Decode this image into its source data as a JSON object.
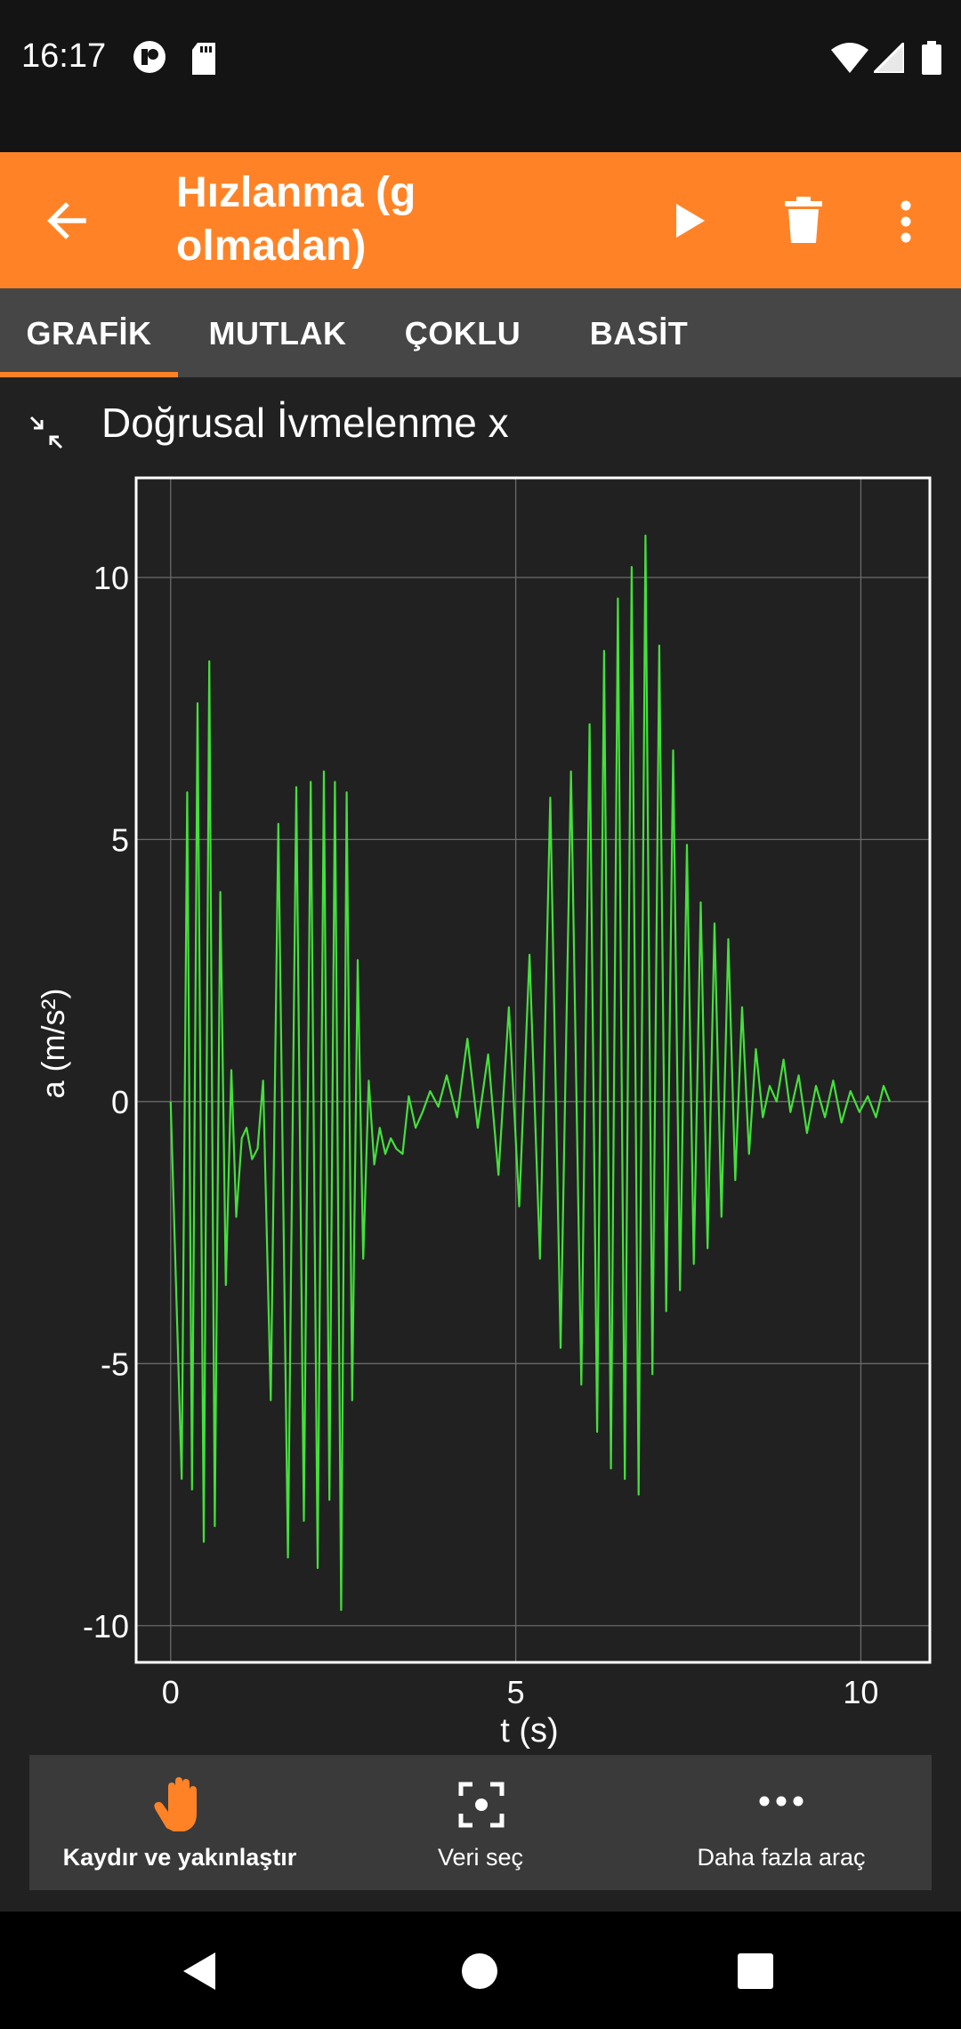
{
  "status": {
    "time": "16:17"
  },
  "app_bar": {
    "title": "Hızlanma (g olmadan)"
  },
  "tabs": [
    {
      "label": "GRAFİK",
      "active": true
    },
    {
      "label": "MUTLAK"
    },
    {
      "label": "ÇOKLU"
    },
    {
      "label": "BASİT"
    }
  ],
  "chart_title": "Doğrusal İvmelenme x",
  "chart_data": {
    "type": "line",
    "xlabel": "t (s)",
    "ylabel": "a (m/s²)",
    "xlim": [
      -0.5,
      11
    ],
    "ylim": [
      -10.7,
      11.9
    ],
    "x_ticks": [
      0,
      5,
      10
    ],
    "x_tick_labels": [
      "0",
      "5",
      "10"
    ],
    "y_ticks": [
      10,
      5,
      0,
      -5,
      -10
    ],
    "y_tick_labels": [
      "10",
      "5",
      "0",
      "-5",
      "-10"
    ],
    "grid": true,
    "line_color": "#44E03C",
    "series": [
      {
        "x": [
          0.0,
          0.16,
          0.24,
          0.31,
          0.39,
          0.48,
          0.56,
          0.64,
          0.72,
          0.8,
          0.88,
          0.95,
          1.03,
          1.1,
          1.18,
          1.26,
          1.34,
          1.45,
          1.56,
          1.7,
          1.82,
          1.93,
          2.03,
          2.13,
          2.22,
          2.3,
          2.38,
          2.47,
          2.55,
          2.63,
          2.71,
          2.79,
          2.87,
          2.95,
          3.03,
          3.11,
          3.19,
          3.27,
          3.36,
          3.45,
          3.55,
          3.65,
          3.76,
          3.88,
          4.0,
          4.15,
          4.3,
          4.45,
          4.6,
          4.75,
          4.9,
          5.05,
          5.2,
          5.35,
          5.5,
          5.65,
          5.8,
          5.95,
          6.07,
          6.18,
          6.28,
          6.38,
          6.48,
          6.58,
          6.68,
          6.78,
          6.88,
          6.98,
          7.08,
          7.18,
          7.28,
          7.38,
          7.48,
          7.58,
          7.68,
          7.78,
          7.88,
          7.98,
          8.08,
          8.18,
          8.28,
          8.38,
          8.48,
          8.58,
          8.68,
          8.78,
          8.88,
          8.98,
          9.1,
          9.22,
          9.35,
          9.48,
          9.6,
          9.72,
          9.85,
          9.98,
          10.1,
          10.22,
          10.33,
          10.42
        ],
        "y": [
          0.0,
          -7.2,
          5.9,
          -7.4,
          7.6,
          -8.4,
          8.4,
          -8.1,
          4.0,
          -3.5,
          0.6,
          -2.2,
          -0.7,
          -0.5,
          -1.1,
          -0.9,
          0.4,
          -5.7,
          5.3,
          -8.7,
          6.0,
          -8.0,
          6.1,
          -8.9,
          6.3,
          -7.6,
          6.1,
          -9.7,
          5.9,
          -5.7,
          2.7,
          -3.0,
          0.4,
          -1.2,
          -0.5,
          -1.0,
          -0.7,
          -0.9,
          -1.0,
          0.1,
          -0.5,
          -0.2,
          0.2,
          -0.1,
          0.5,
          -0.3,
          1.2,
          -0.5,
          0.9,
          -1.4,
          1.8,
          -2.0,
          2.8,
          -3.0,
          5.8,
          -4.7,
          6.3,
          -5.4,
          7.2,
          -6.3,
          8.6,
          -7.0,
          9.6,
          -7.2,
          10.2,
          -7.5,
          10.8,
          -5.2,
          8.7,
          -4.0,
          6.7,
          -3.6,
          4.9,
          -3.1,
          3.8,
          -2.8,
          3.4,
          -2.2,
          3.1,
          -1.5,
          1.8,
          -1.0,
          1.0,
          -0.3,
          0.3,
          0.0,
          0.8,
          -0.2,
          0.5,
          -0.6,
          0.3,
          -0.3,
          0.4,
          -0.4,
          0.2,
          -0.2,
          0.1,
          -0.3,
          0.3,
          0.0
        ]
      }
    ]
  },
  "toolbar": {
    "items": [
      {
        "label": "Kaydır ve yakınlaştır",
        "icon": "hand-icon",
        "active": true
      },
      {
        "label": "Veri seç",
        "icon": "select-data-icon"
      },
      {
        "label": "Daha fazla araç",
        "icon": "more-horizontal-icon"
      }
    ]
  },
  "colors": {
    "accent": "#FF8326",
    "line": "#44E03C",
    "background": "#212121"
  }
}
